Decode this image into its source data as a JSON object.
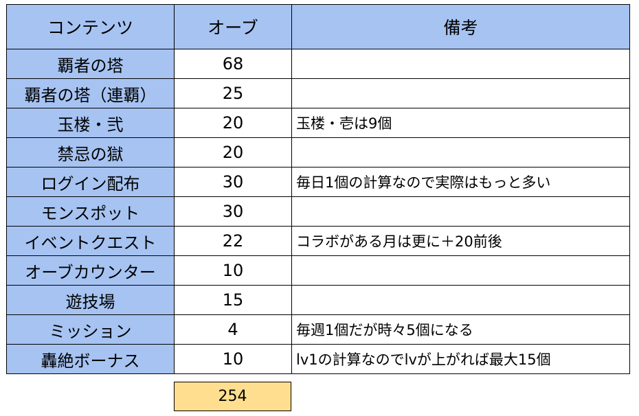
{
  "header": {
    "content": "コンテンツ",
    "orb": "オーブ",
    "note": "備考"
  },
  "rows": [
    {
      "content": "覇者の塔",
      "orb": "68",
      "note": ""
    },
    {
      "content": "覇者の塔（連覇）",
      "orb": "25",
      "note": ""
    },
    {
      "content": "玉楼・弐",
      "orb": "20",
      "note": "玉楼・壱は9個"
    },
    {
      "content": "禁忌の獄",
      "orb": "20",
      "note": ""
    },
    {
      "content": "ログイン配布",
      "orb": "30",
      "note": "毎日1個の計算なので実際はもっと多い"
    },
    {
      "content": "モンスポット",
      "orb": "30",
      "note": ""
    },
    {
      "content": "イベントクエスト",
      "orb": "22",
      "note": "コラボがある月は更に＋20前後"
    },
    {
      "content": "オーブカウンター",
      "orb": "10",
      "note": ""
    },
    {
      "content": "遊技場",
      "orb": "15",
      "note": ""
    },
    {
      "content": "ミッション",
      "orb": "4",
      "note": "毎週1個だが時々5個になる"
    },
    {
      "content": "轟絶ボーナス",
      "orb": "10",
      "note": "lv1の計算なのでlvが上がれば最大15個"
    }
  ],
  "total": "254",
  "colors": {
    "header_bg": "#a6c3f2",
    "content_col_bg": "#a6c3f2",
    "total_bg": "#ffdf8f",
    "border": "#000000"
  }
}
